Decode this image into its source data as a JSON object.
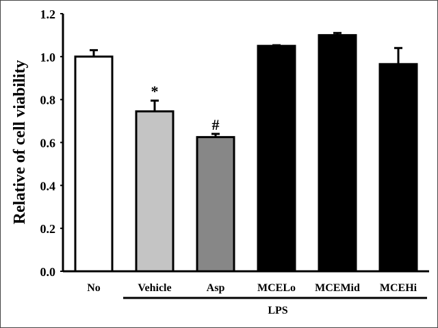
{
  "chart_data": {
    "type": "bar",
    "title": "",
    "xlabel": "",
    "ylabel": "Relative of cell viability",
    "ylim": [
      0,
      1.2
    ],
    "yticks": [
      "0.0",
      "0.2",
      "0.4",
      "0.6",
      "0.8",
      "1.0",
      "1.2"
    ],
    "categories": [
      "No",
      "Vehicle",
      "Asp",
      "MCELo",
      "MCEMid",
      "MCEHi"
    ],
    "values": [
      1.0,
      0.745,
      0.625,
      1.05,
      1.1,
      0.965
    ],
    "errors": [
      0.03,
      0.05,
      0.015,
      0.003,
      0.01,
      0.075
    ],
    "colors": [
      "#ffffff",
      "#c4c4c4",
      "#878787",
      "#000000",
      "#000000",
      "#000000"
    ],
    "annotations": [
      "",
      "*",
      "#",
      "",
      "",
      ""
    ],
    "group_label": {
      "text": "LPS",
      "categories": [
        "Vehicle",
        "Asp",
        "MCELo",
        "MCEMid",
        "MCEHi"
      ]
    },
    "grid": false,
    "legend": "none"
  }
}
